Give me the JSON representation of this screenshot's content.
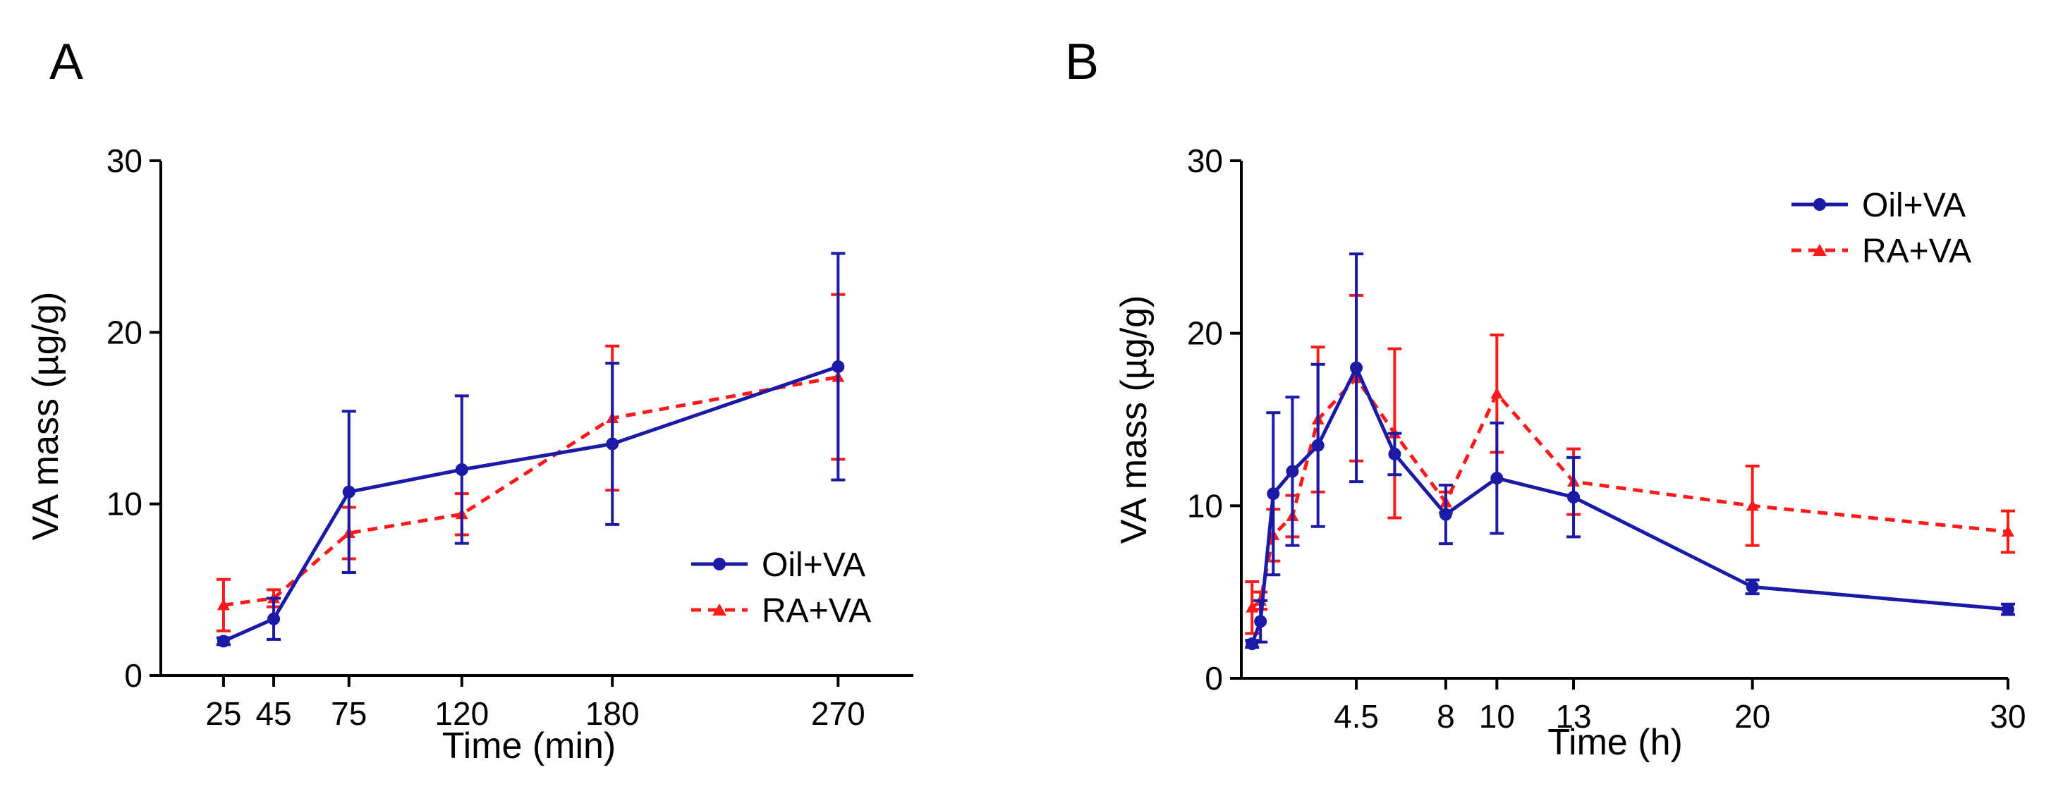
{
  "chart_data": [
    {
      "panel_label": "A",
      "type": "line",
      "title": "",
      "xlabel": "Time (min)",
      "ylabel": "VA mass (µg/g)",
      "xlim": [
        0,
        300
      ],
      "ylim": [
        0,
        30
      ],
      "x_ticks": [
        25,
        45,
        75,
        120,
        180,
        270
      ],
      "y_ticks": [
        0,
        10,
        20,
        30
      ],
      "legend_position": "bottom-right",
      "series": [
        {
          "name": "Oil+VA",
          "color": "#1a1aa6",
          "style": "solid",
          "marker": "circle",
          "x": [
            25,
            45,
            75,
            120,
            180,
            270
          ],
          "y": [
            2.0,
            3.3,
            10.7,
            12.0,
            13.5,
            18.0
          ],
          "err": [
            0.2,
            1.2,
            4.7,
            4.3,
            4.7,
            6.6
          ]
        },
        {
          "name": "RA+VA",
          "color": "#ff1a1a",
          "style": "dashed",
          "marker": "triangle",
          "x": [
            25,
            45,
            75,
            120,
            180,
            270
          ],
          "y": [
            4.1,
            4.5,
            8.3,
            9.4,
            15.0,
            17.4
          ],
          "err": [
            1.5,
            0.5,
            1.5,
            1.2,
            4.2,
            4.8
          ]
        }
      ]
    },
    {
      "panel_label": "B",
      "type": "line",
      "title": "",
      "xlabel": "Time (h)",
      "ylabel": "VA mass (µg/g)",
      "xlim": [
        0,
        30
      ],
      "ylim": [
        0,
        30
      ],
      "x_ticks": [
        4.5,
        8,
        10,
        13,
        20,
        30
      ],
      "y_ticks": [
        0,
        10,
        20,
        30
      ],
      "legend_position": "top-right",
      "series": [
        {
          "name": "Oil+VA",
          "color": "#1a1aa6",
          "style": "solid",
          "marker": "circle",
          "x": [
            0.42,
            0.75,
            1.25,
            2,
            3,
            4.5,
            6,
            8,
            10,
            13,
            20,
            30
          ],
          "y": [
            2.0,
            3.3,
            10.7,
            12.0,
            13.5,
            18.0,
            13.0,
            9.5,
            11.6,
            10.5,
            5.3,
            4.0
          ],
          "err": [
            0.2,
            1.2,
            4.7,
            4.3,
            4.7,
            6.6,
            1.2,
            1.7,
            3.2,
            2.3,
            0.4,
            0.3
          ]
        },
        {
          "name": "RA+VA",
          "color": "#ff1a1a",
          "style": "dashed",
          "marker": "triangle",
          "x": [
            0.42,
            0.75,
            1.25,
            2,
            3,
            4.5,
            6,
            8,
            10,
            13,
            20,
            30
          ],
          "y": [
            4.1,
            4.5,
            8.3,
            9.4,
            15.0,
            17.4,
            14.2,
            10.2,
            16.5,
            11.4,
            10.0,
            8.5
          ],
          "err": [
            1.5,
            0.5,
            1.5,
            1.2,
            4.2,
            4.8,
            4.9,
            0.6,
            3.4,
            1.9,
            2.3,
            1.2
          ]
        }
      ]
    }
  ]
}
